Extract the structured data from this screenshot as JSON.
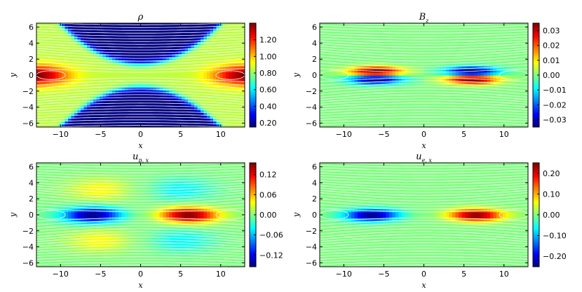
{
  "chart_data": [
    {
      "type": "heatmap",
      "title": "ρ",
      "xlabel": "x",
      "ylabel": "y",
      "xlim": [
        -13,
        13
      ],
      "ylim": [
        -6.5,
        6.5
      ],
      "xticks": [
        -10,
        -5,
        0,
        5,
        10
      ],
      "yticks": [
        -6,
        -4,
        -2,
        0,
        2,
        4,
        6
      ],
      "colorbar": {
        "min": 0.15,
        "max": 1.4,
        "ticks": [
          "0.20",
          "0.40",
          "0.60",
          "0.80",
          "1.00",
          "1.20"
        ],
        "tick_values": [
          0.2,
          0.4,
          0.6,
          0.8,
          1.0,
          1.2
        ]
      },
      "field": {
        "pattern": "density",
        "base": 0.85,
        "peak": 1.4,
        "outer": 0.15
      },
      "streamlines": true,
      "colormap": "jet"
    },
    {
      "type": "heatmap",
      "title": "B",
      "title_sub": "z",
      "xlabel": "x",
      "ylabel": "y",
      "xlim": [
        -13,
        13
      ],
      "ylim": [
        -6.5,
        6.5
      ],
      "xticks": [
        -10,
        -5,
        0,
        5,
        10
      ],
      "yticks": [
        -6,
        -4,
        -2,
        0,
        2,
        4,
        6
      ],
      "colorbar": {
        "min": -0.035,
        "max": 0.035,
        "ticks": [
          "-0.03",
          "-0.02",
          "-0.01",
          "0.00",
          "0.01",
          "0.02",
          "0.03"
        ],
        "tick_values": [
          -0.03,
          -0.02,
          -0.01,
          0.0,
          0.01,
          0.02,
          0.03
        ]
      },
      "field": {
        "pattern": "quadrupole",
        "amplitude": 0.035
      },
      "streamlines": true,
      "colormap": "jet"
    },
    {
      "type": "heatmap",
      "title": "u",
      "title_sub": "p, x",
      "xlabel": "x",
      "ylabel": "y",
      "xlim": [
        -13,
        13
      ],
      "ylim": [
        -6.5,
        6.5
      ],
      "xticks": [
        -10,
        -5,
        0,
        5,
        10
      ],
      "yticks": [
        -6,
        -4,
        -2,
        0,
        2,
        4,
        6
      ],
      "colorbar": {
        "min": -0.155,
        "max": 0.155,
        "ticks": [
          "-0.12",
          "-0.06",
          "0.00",
          "0.06",
          "0.12"
        ],
        "tick_values": [
          -0.12,
          -0.06,
          0.0,
          0.06,
          0.12
        ]
      },
      "field": {
        "pattern": "outflow_wide",
        "amplitude": 0.155,
        "side_lobe": 0.04
      },
      "streamlines": true,
      "colormap": "jet"
    },
    {
      "type": "heatmap",
      "title": "u",
      "title_sub": "e, x",
      "xlabel": "x",
      "ylabel": "y",
      "xlim": [
        -13,
        13
      ],
      "ylim": [
        -6.5,
        6.5
      ],
      "xticks": [
        -10,
        -5,
        0,
        5,
        10
      ],
      "yticks": [
        -6,
        -4,
        -2,
        0,
        2,
        4,
        6
      ],
      "colorbar": {
        "min": -0.25,
        "max": 0.25,
        "ticks": [
          "-0.20",
          "-0.10",
          "0.00",
          "0.10",
          "0.20"
        ],
        "tick_values": [
          -0.2,
          -0.1,
          0.0,
          0.1,
          0.2
        ]
      },
      "field": {
        "pattern": "outflow_narrow",
        "amplitude": 0.25
      },
      "streamlines": true,
      "colormap": "jet"
    }
  ]
}
